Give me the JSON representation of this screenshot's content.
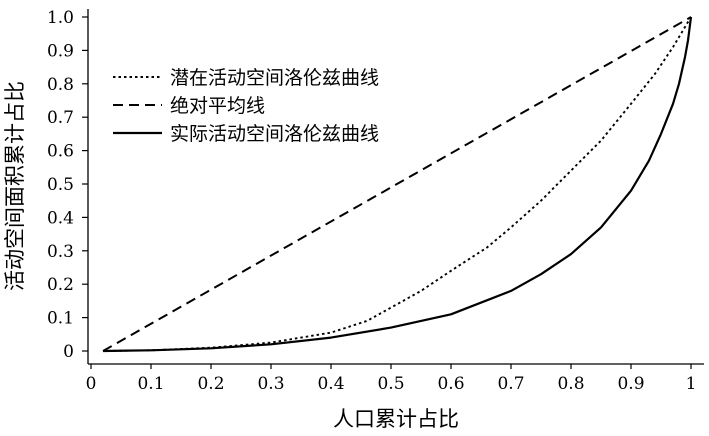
{
  "chart_data": {
    "type": "line",
    "xlabel": "人口累计占比",
    "ylabel": "活动空间面积累计占比",
    "xlim": [
      0,
      1
    ],
    "ylim": [
      0,
      1
    ],
    "x_ticks": [
      "0",
      "0.1",
      "0.2",
      "0.3",
      "0.4",
      "0.5",
      "0.6",
      "0.7",
      "0.8",
      "0.9",
      "1"
    ],
    "y_ticks": [
      "0",
      "0.1",
      "0.2",
      "0.3",
      "0.4",
      "0.5",
      "0.6",
      "0.7",
      "0.8",
      "0.9",
      "1.0"
    ],
    "grid": false,
    "legend_position": "upper-left",
    "series": [
      {
        "name": "潜在活动空间洛伦兹曲线",
        "style": "dotted",
        "color": "#000000",
        "x": [
          0.02,
          0.1,
          0.2,
          0.3,
          0.4,
          0.46,
          0.5,
          0.55,
          0.6,
          0.66,
          0.7,
          0.75,
          0.8,
          0.85,
          0.9,
          0.94,
          0.97,
          0.99,
          1.0
        ],
        "y": [
          0.0,
          0.002,
          0.01,
          0.025,
          0.055,
          0.09,
          0.13,
          0.18,
          0.24,
          0.31,
          0.37,
          0.45,
          0.54,
          0.63,
          0.74,
          0.83,
          0.91,
          0.97,
          1.0
        ]
      },
      {
        "name": "绝对平均线",
        "style": "dashed",
        "color": "#000000",
        "x": [
          0.02,
          1.0
        ],
        "y": [
          0.0,
          1.0
        ]
      },
      {
        "name": "实际活动空间洛伦兹曲线",
        "style": "solid",
        "color": "#000000",
        "x": [
          0.02,
          0.1,
          0.2,
          0.3,
          0.4,
          0.5,
          0.6,
          0.7,
          0.75,
          0.8,
          0.85,
          0.9,
          0.93,
          0.95,
          0.97,
          0.98,
          0.99,
          0.995,
          1.0
        ],
        "y": [
          0.0,
          0.002,
          0.008,
          0.02,
          0.04,
          0.07,
          0.11,
          0.18,
          0.23,
          0.29,
          0.37,
          0.48,
          0.57,
          0.65,
          0.74,
          0.8,
          0.88,
          0.93,
          1.0
        ]
      }
    ]
  }
}
